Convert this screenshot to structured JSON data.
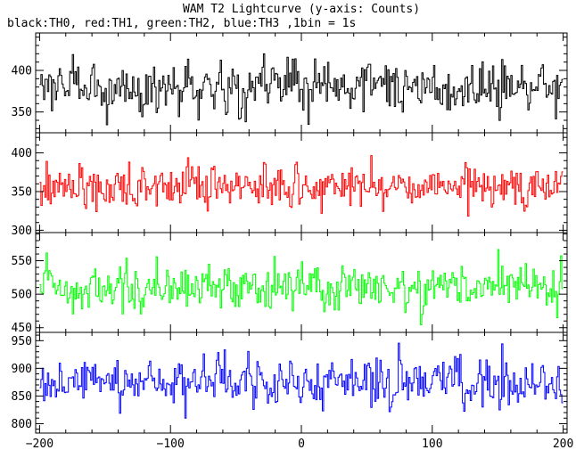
{
  "chart_data": {
    "type": "line",
    "title": "WAM T2 Lightcurve (y-axis: Counts)",
    "subtitle": "black:TH0, red:TH1, green:TH2, blue:TH3 ,1bin = 1s",
    "xlim": [
      -203,
      203
    ],
    "x_ticks": [
      -200,
      -100,
      0,
      100,
      200
    ],
    "x_tick_labels": [
      "−200",
      "−100",
      "0",
      "100",
      "200"
    ],
    "grid": false,
    "panels": [
      {
        "series_name": "TH0",
        "color": "#000000",
        "ylim": [
          325,
          445
        ],
        "y_ticks": [
          350,
          400
        ],
        "mean": 380,
        "spread": 18,
        "y_range_shown": [
          328,
          445
        ],
        "x_start": -200,
        "x_end": 199,
        "step": 1
      },
      {
        "series_name": "TH1",
        "color": "#ff0000",
        "ylim": [
          297,
          426
        ],
        "y_ticks": [
          300,
          350,
          400
        ],
        "mean": 357,
        "spread": 17,
        "y_range_shown": [
          298,
          426
        ],
        "x_start": -200,
        "x_end": 199,
        "step": 1
      },
      {
        "series_name": "TH2",
        "color": "#00ff00",
        "ylim": [
          443,
          592
        ],
        "y_ticks": [
          450,
          500,
          550
        ],
        "mean": 510,
        "spread": 22,
        "y_range_shown": [
          445,
          590
        ],
        "x_start": -200,
        "x_end": 199,
        "step": 1
      },
      {
        "series_name": "TH3",
        "color": "#0000ff",
        "ylim": [
          783,
          965
        ],
        "y_ticks": [
          800,
          850,
          900,
          950
        ],
        "mean": 875,
        "spread": 28,
        "y_range_shown": [
          785,
          962
        ],
        "x_start": -200,
        "x_end": 199,
        "step": 1
      }
    ]
  }
}
